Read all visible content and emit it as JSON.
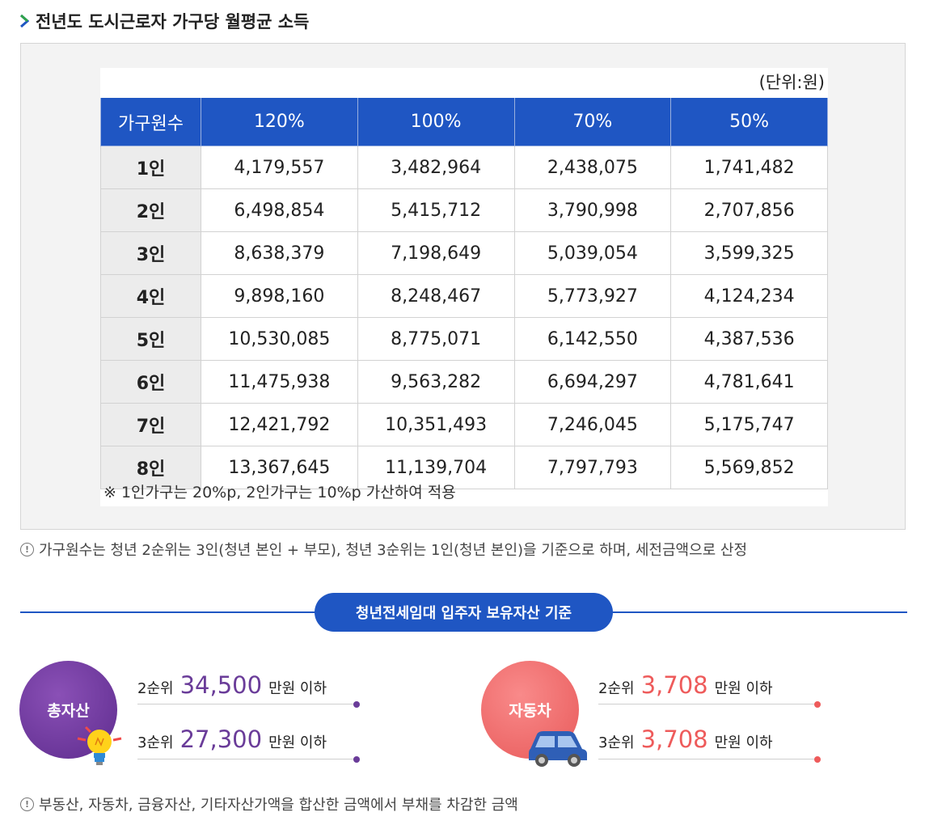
{
  "section": {
    "title": "전년도 도시근로자 가구당 월평균 소득"
  },
  "table": {
    "unit": "(단위:원)",
    "headers": [
      "가구원수",
      "120%",
      "100%",
      "70%",
      "50%"
    ],
    "rows": [
      [
        "1인",
        "4,179,557",
        "3,482,964",
        "2,438,075",
        "1,741,482"
      ],
      [
        "2인",
        "6,498,854",
        "5,415,712",
        "3,790,998",
        "2,707,856"
      ],
      [
        "3인",
        "8,638,379",
        "7,198,649",
        "5,039,054",
        "3,599,325"
      ],
      [
        "4인",
        "9,898,160",
        "8,248,467",
        "5,773,927",
        "4,124,234"
      ],
      [
        "5인",
        "10,530,085",
        "8,775,071",
        "6,142,550",
        "4,387,536"
      ],
      [
        "6인",
        "11,475,938",
        "9,563,282",
        "6,694,297",
        "4,781,641"
      ],
      [
        "7인",
        "12,421,792",
        "10,351,493",
        "7,246,045",
        "5,175,747"
      ],
      [
        "8인",
        "13,367,645",
        "11,139,704",
        "7,797,793",
        "5,569,852"
      ]
    ],
    "footnote": "※ 1인가구는 20%p, 2인가구는 10%p 가산하여 적용"
  },
  "notice1": "가구원수는 청년 2순위는 3인(청년 본인 + 부모), 청년 3순위는 1인(청년 본인)을 기준으로 하며, 세전금액으로 산정",
  "assets": {
    "title": "청년전세임대 입주자 보유자산 기준",
    "total": {
      "label": "총자산",
      "rank2": {
        "prefix": "2순위",
        "amount": "34,500",
        "suffix": "만원 이하"
      },
      "rank3": {
        "prefix": "3순위",
        "amount": "27,300",
        "suffix": "만원 이하"
      }
    },
    "car": {
      "label": "자동차",
      "rank2": {
        "prefix": "2순위",
        "amount": "3,708",
        "suffix": "만원 이하"
      },
      "rank3": {
        "prefix": "3순위",
        "amount": "3,708",
        "suffix": "만원 이하"
      }
    }
  },
  "notice2": "부동산, 자동차, 금융자산, 기타자산가액을 합산한 금액에서 부채를 차감한 금액",
  "colors": {
    "blue": "#1f56c3",
    "purple": "#6a3c99",
    "coral": "#ee5b5b"
  },
  "icons": [
    "chevron-right-icon",
    "info-icon",
    "lightbulb-icon",
    "car-icon"
  ]
}
